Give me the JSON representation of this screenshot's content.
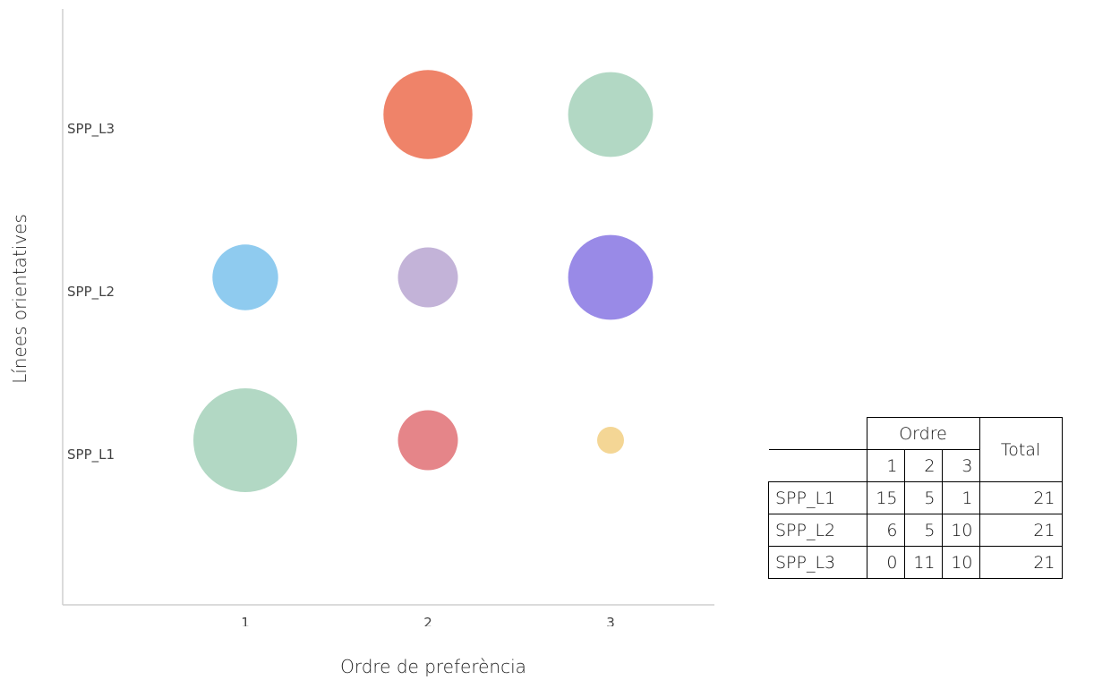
{
  "chart_data": {
    "type": "bubble",
    "xlabel": "Ordre de preferència",
    "ylabel": "Línees orientatives",
    "x_categories": [
      "1",
      "2",
      "3"
    ],
    "y_categories": [
      "SPP_L1",
      "SPP_L2",
      "SPP_L3"
    ],
    "points": [
      {
        "y": "SPP_L1",
        "x": "1",
        "value": 15,
        "color": "#b2d8c4"
      },
      {
        "y": "SPP_L1",
        "x": "2",
        "value": 5,
        "color": "#e58589"
      },
      {
        "y": "SPP_L1",
        "x": "3",
        "value": 1,
        "color": "#f4d695"
      },
      {
        "y": "SPP_L2",
        "x": "1",
        "value": 6,
        "color": "#8fcbef"
      },
      {
        "y": "SPP_L2",
        "x": "2",
        "value": 5,
        "color": "#c3b3d8"
      },
      {
        "y": "SPP_L2",
        "x": "3",
        "value": 10,
        "color": "#998ae7"
      },
      {
        "y": "SPP_L3",
        "x": "2",
        "value": 11,
        "color": "#ef8369"
      },
      {
        "y": "SPP_L3",
        "x": "3",
        "value": 10,
        "color": "#b2d8c4"
      }
    ]
  },
  "table": {
    "group_header": "Ordre",
    "total_header": "Total",
    "columns": [
      "1",
      "2",
      "3"
    ],
    "rows": [
      {
        "label": "SPP_L1",
        "values": [
          "15",
          "5",
          "1"
        ],
        "total": "21"
      },
      {
        "label": "SPP_L2",
        "values": [
          "6",
          "5",
          "10"
        ],
        "total": "21"
      },
      {
        "label": "SPP_L3",
        "values": [
          "0",
          "11",
          "10"
        ],
        "total": "21"
      }
    ]
  }
}
